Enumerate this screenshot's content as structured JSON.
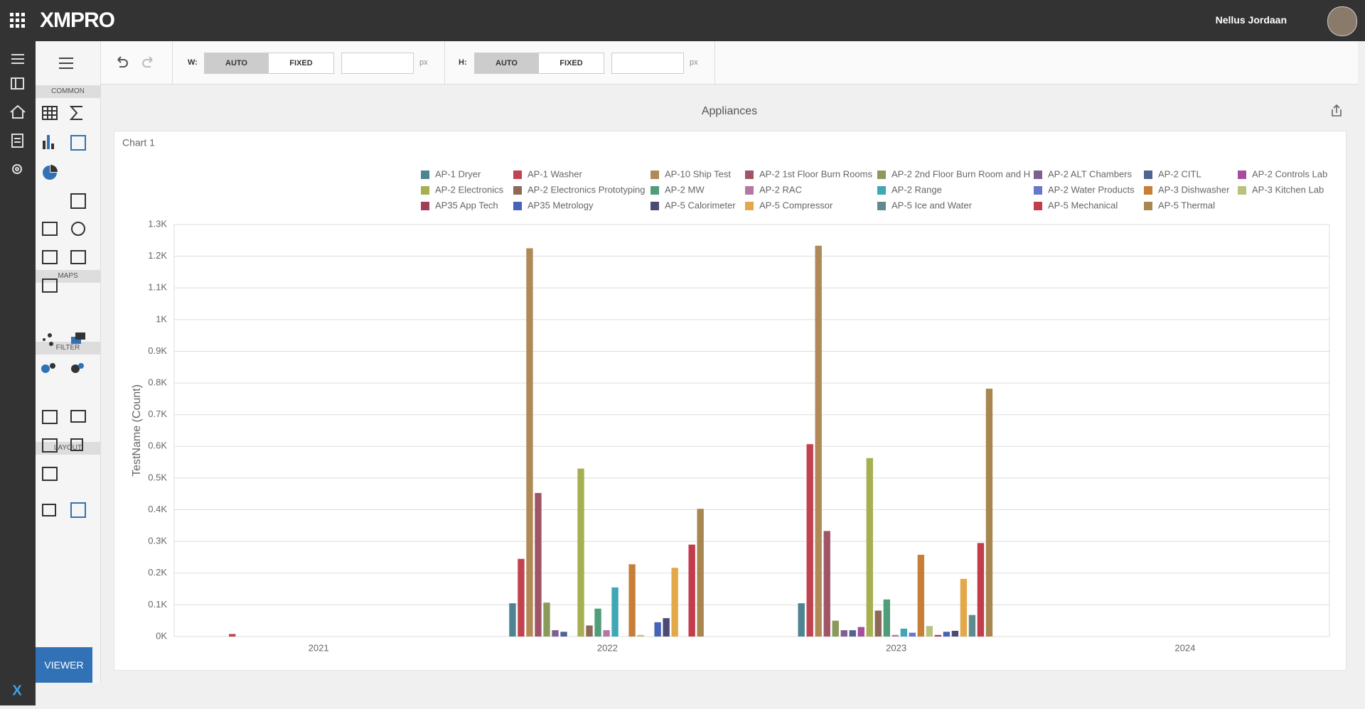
{
  "topbar": {
    "logo": "XMPRO",
    "user": "Nellus Jordaan"
  },
  "toolbar": {
    "width": {
      "label": "W:",
      "auto": "AUTO",
      "fixed": "FIXED",
      "unit": "px"
    },
    "height": {
      "label": "H:",
      "auto": "AUTO",
      "fixed": "FIXED",
      "unit": "px"
    }
  },
  "palette": {
    "sections": [
      "COMMON",
      "MAPS",
      "FILTER",
      "LAYOUT"
    ],
    "button": "VIEWER"
  },
  "dashboard": {
    "title": "Appliances"
  },
  "chart_data": {
    "type": "bar",
    "title": "Chart 1",
    "y_label": "TestName (Count)",
    "categories": [
      "2021",
      "2022",
      "2023",
      "2024"
    ],
    "ylim": [
      0,
      1300
    ],
    "yticks": [
      {
        "value": 0,
        "label": "0K"
      },
      {
        "value": 100,
        "label": "0.1K"
      },
      {
        "value": 200,
        "label": "0.2K"
      },
      {
        "value": 300,
        "label": "0.3K"
      },
      {
        "value": 400,
        "label": "0.4K"
      },
      {
        "value": 500,
        "label": "0.5K"
      },
      {
        "value": 600,
        "label": "0.6K"
      },
      {
        "value": 700,
        "label": "0.7K"
      },
      {
        "value": 800,
        "label": "0.8K"
      },
      {
        "value": 900,
        "label": "0.9K"
      },
      {
        "value": 1000,
        "label": "1K"
      },
      {
        "value": 1100,
        "label": "1.1K"
      },
      {
        "value": 1200,
        "label": "1.2K"
      },
      {
        "value": 1300,
        "label": "1.3K"
      }
    ],
    "grid": true,
    "series": [
      {
        "name": "AP-1 Dryer",
        "color": "#4e8391",
        "values": [
          0,
          105,
          105,
          0
        ]
      },
      {
        "name": "AP-1 Washer",
        "color": "#c0434f",
        "values": [
          8,
          245,
          607,
          0
        ]
      },
      {
        "name": "AP-10 Ship Test",
        "color": "#b08a56",
        "values": [
          0,
          1225,
          1233,
          0
        ]
      },
      {
        "name": "AP-2 1st Floor Burn Rooms",
        "color": "#a05468",
        "values": [
          0,
          453,
          333,
          0
        ]
      },
      {
        "name": "AP-2 2nd Floor Burn Room and H",
        "color": "#8a9a5b",
        "values": [
          0,
          107,
          50,
          0
        ]
      },
      {
        "name": "AP-2 ALT Chambers",
        "color": "#7f5f8f",
        "values": [
          0,
          20,
          20,
          0
        ]
      },
      {
        "name": "AP-2 CITL",
        "color": "#4f6493",
        "values": [
          0,
          15,
          20,
          0
        ]
      },
      {
        "name": "AP-2 Controls Lab",
        "color": "#a54ea0",
        "values": [
          0,
          0,
          30,
          0
        ]
      },
      {
        "name": "AP-2 Electronics",
        "color": "#a7b051",
        "values": [
          0,
          530,
          563,
          0
        ]
      },
      {
        "name": "AP-2 Electronics Prototyping",
        "color": "#8d6a57",
        "values": [
          0,
          35,
          82,
          0
        ]
      },
      {
        "name": "AP-2 MW",
        "color": "#4f9d7a",
        "values": [
          0,
          88,
          117,
          0
        ]
      },
      {
        "name": "AP-2 RAC",
        "color": "#b377a0",
        "values": [
          0,
          20,
          5,
          0
        ]
      },
      {
        "name": "AP-2 Range",
        "color": "#3fa7b5",
        "values": [
          0,
          155,
          25,
          0
        ]
      },
      {
        "name": "AP-2 Water Products",
        "color": "#6677cc",
        "values": [
          0,
          0,
          12,
          0
        ]
      },
      {
        "name": "AP-3 Dishwasher",
        "color": "#c77f37",
        "values": [
          0,
          228,
          258,
          0
        ]
      },
      {
        "name": "AP-3 Kitchen Lab",
        "color": "#b8c27e",
        "values": [
          0,
          5,
          33,
          0
        ]
      },
      {
        "name": "AP35 App Tech",
        "color": "#a04058",
        "values": [
          0,
          0,
          5,
          0
        ]
      },
      {
        "name": "AP35 Metrology",
        "color": "#4563b8",
        "values": [
          0,
          45,
          15,
          0
        ]
      },
      {
        "name": "AP-5 Calorimeter",
        "color": "#4b4a74",
        "values": [
          0,
          58,
          18,
          0
        ]
      },
      {
        "name": "AP-5 Compressor",
        "color": "#e3a84a",
        "values": [
          0,
          217,
          182,
          0
        ]
      },
      {
        "name": "AP-5 Ice and Water",
        "color": "#5f8b8e",
        "values": [
          0,
          0,
          68,
          0
        ]
      },
      {
        "name": "AP-5 Mechanical",
        "color": "#c33c4b",
        "values": [
          0,
          290,
          295,
          0
        ]
      },
      {
        "name": "AP-5 Thermal",
        "color": "#a8864f",
        "values": [
          0,
          403,
          782,
          0
        ]
      }
    ]
  }
}
